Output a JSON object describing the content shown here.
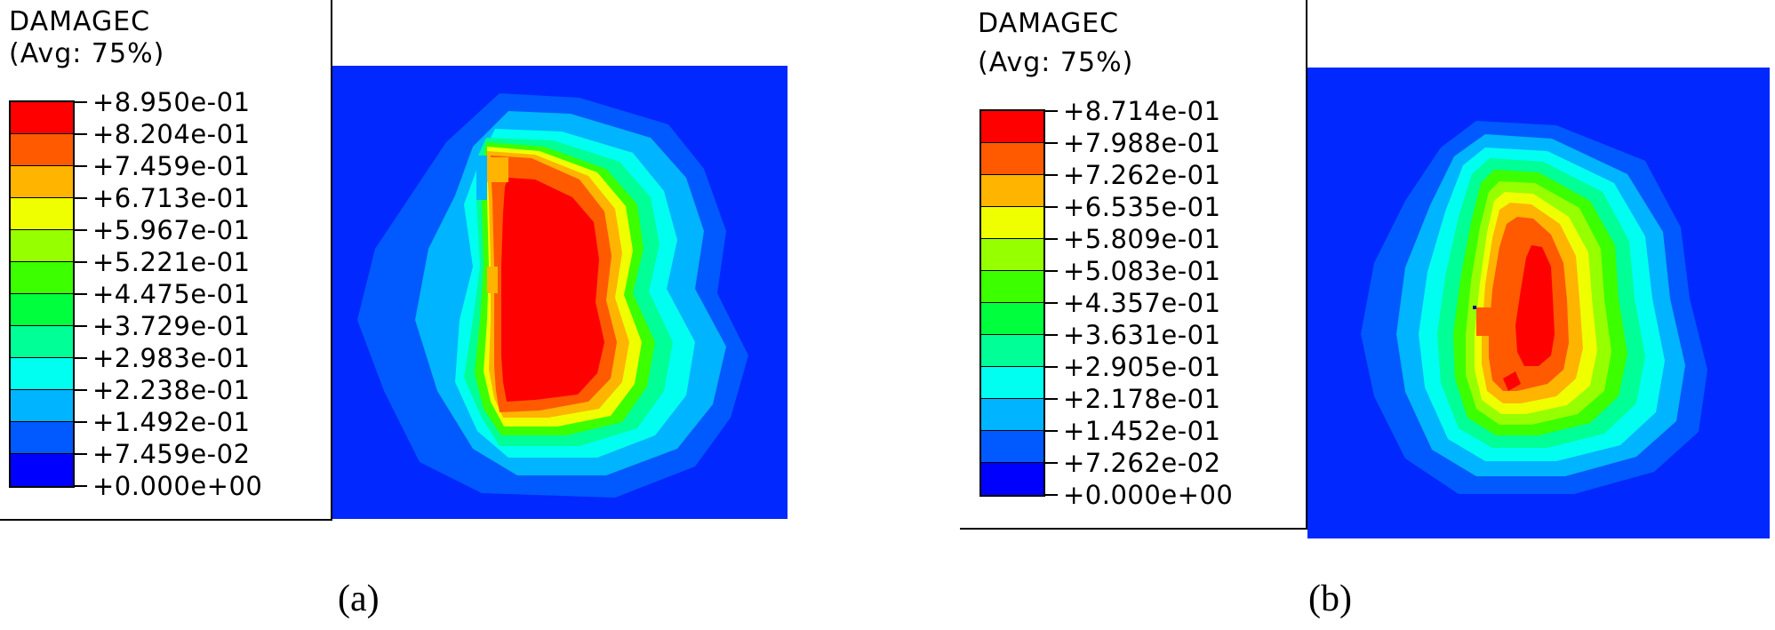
{
  "panels": [
    {
      "legend": {
        "title": "DAMAGEC",
        "subtitle": "(Avg: 75%)",
        "labels": [
          "+8.950e-01",
          "+8.204e-01",
          "+7.459e-01",
          "+6.713e-01",
          "+5.967e-01",
          "+5.221e-01",
          "+4.475e-01",
          "+3.729e-01",
          "+2.983e-01",
          "+2.238e-01",
          "+1.492e-01",
          "+7.459e-02",
          "+0.000e+00"
        ]
      },
      "caption": "(a)"
    },
    {
      "legend": {
        "title": "DAMAGEC",
        "subtitle": "(Avg: 75%)",
        "labels": [
          "+8.714e-01",
          "+7.988e-01",
          "+7.262e-01",
          "+6.535e-01",
          "+5.809e-01",
          "+5.083e-01",
          "+4.357e-01",
          "+3.631e-01",
          "+2.905e-01",
          "+2.178e-01",
          "+1.452e-01",
          "+7.262e-02",
          "+0.000e+00"
        ]
      },
      "caption": "(b)"
    }
  ],
  "colors": {
    "bands_top_to_bottom": [
      "#ff0000",
      "#ff5a00",
      "#ffb400",
      "#f0ff00",
      "#96ff00",
      "#3cff00",
      "#00ff3c",
      "#00ff96",
      "#00fff0",
      "#00b4ff",
      "#005aff",
      "#0000ff"
    ],
    "background_field": "#0028ff"
  }
}
